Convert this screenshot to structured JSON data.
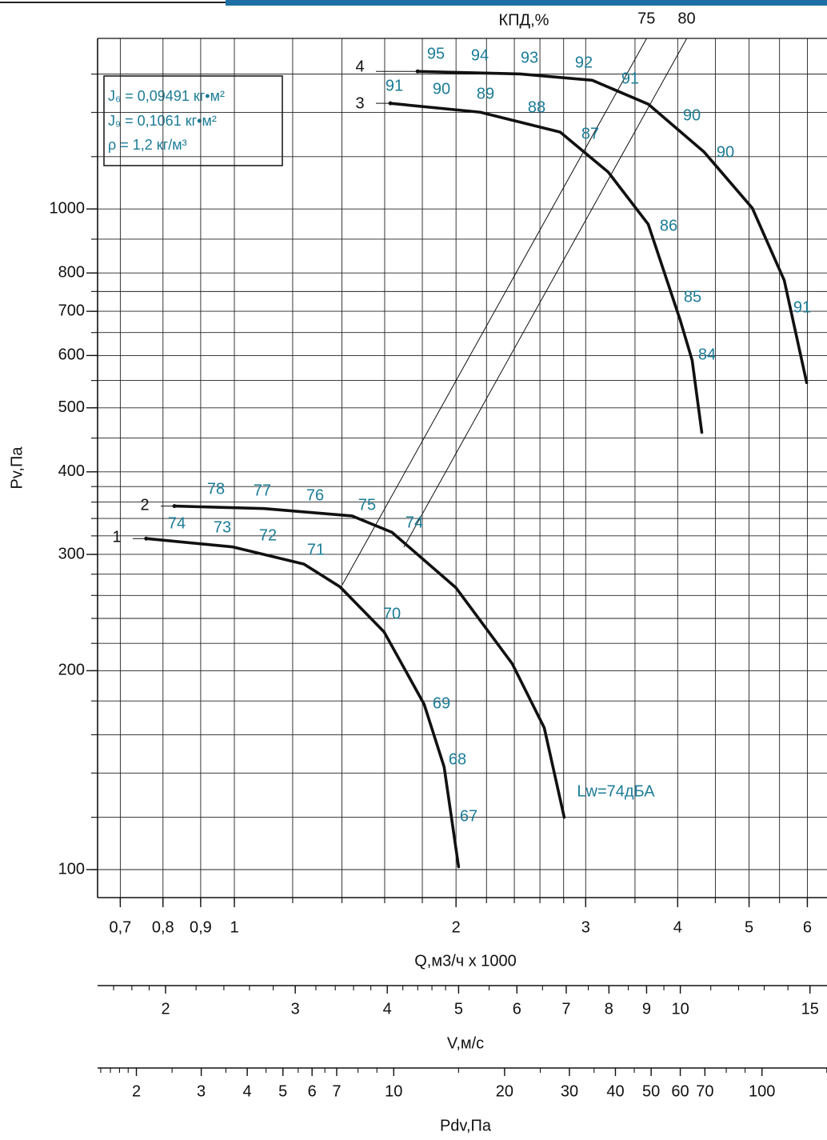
{
  "chart_data": {
    "type": "line",
    "xlog": true,
    "ylog": true,
    "grid": true,
    "efficiency_title": "КПД,%",
    "xlabel": "Q,м3/ч x 1000",
    "ylabel": "Pv,Па",
    "xlim": [
      0.652,
      6.38
    ],
    "ylim": [
      90.7,
      1812
    ],
    "xticks": [
      {
        "value": 0.7,
        "label": "0,7"
      },
      {
        "value": 0.8,
        "label": "0,8"
      },
      {
        "value": 0.9,
        "label": "0,9"
      },
      1,
      2,
      3,
      4,
      5,
      6
    ],
    "xgrid": [
      0.7,
      0.8,
      0.9,
      1,
      1.2,
      1.4,
      1.6,
      1.8,
      2,
      2.2,
      2.4,
      2.6,
      2.8,
      3,
      3.5,
      4,
      4.5,
      5,
      5.5,
      6
    ],
    "yticks": [
      100,
      200,
      300,
      400,
      500,
      600,
      700,
      800,
      1000
    ],
    "ygrid": [
      100,
      120,
      140,
      160,
      180,
      200,
      220,
      240,
      260,
      280,
      300,
      320,
      340,
      360,
      380,
      400,
      450,
      500,
      550,
      600,
      650,
      700,
      750,
      800,
      900,
      1000,
      1200,
      1400,
      1600
    ],
    "series": [
      {
        "name": "1",
        "color": "#111111",
        "x": [
          0.759,
          0.993,
          1.243,
          1.391,
          1.597,
          1.81,
          1.927,
          2.016
        ],
        "values": [
          317,
          308,
          290,
          268,
          229,
          178,
          143,
          101
        ]
      },
      {
        "name": "2",
        "color": "#111111",
        "x": [
          0.829,
          1.097,
          1.445,
          1.637,
          2.0,
          2.384,
          2.635,
          2.805
        ],
        "values": [
          355,
          352,
          343,
          324,
          267,
          205,
          164,
          120
        ]
      },
      {
        "name": "3",
        "color": "#111111",
        "x": [
          1.629,
          2.157,
          2.77,
          3.219,
          3.648,
          4.031,
          4.185,
          4.313
        ],
        "values": [
          1445,
          1401,
          1307,
          1137,
          948,
          679,
          590,
          459
        ]
      },
      {
        "name": "4",
        "color": "#111111",
        "x": [
          1.774,
          2.443,
          3.062,
          3.648,
          4.346,
          5.051,
          5.581,
          5.987
        ],
        "values": [
          1615,
          1601,
          1566,
          1441,
          1219,
          1003,
          780,
          546
        ]
      }
    ],
    "efficiency_lines": [
      {
        "name": "75",
        "color": "#111111",
        "x": [
          1.402,
          3.628
        ],
        "values": [
          270,
          1810
        ]
      },
      {
        "name": "80",
        "color": "#111111",
        "x": [
          1.7,
          4.113
        ],
        "values": [
          308,
          1810
        ]
      }
    ],
    "annotations": [
      "95",
      "94",
      "93",
      "92",
      "91",
      "90",
      "90",
      "91",
      "91",
      "90",
      "89",
      "88",
      "87",
      "86",
      "85",
      "84",
      "78",
      "77",
      "76",
      "75",
      "74",
      "Lw=74дБА",
      "74",
      "73",
      "72",
      "71",
      "70",
      "69",
      "68",
      "67"
    ],
    "info": [
      "J₆ = 0,09491 кг•м²",
      "J₉ = 0,1061 кг•м²",
      "ρ = 1,2 кг/м³"
    ],
    "secondary_axes": [
      {
        "label": "V,м/с",
        "lim": [
          1.617,
          15.82
        ],
        "ticks": [
          2,
          3,
          4,
          5,
          6,
          7,
          8,
          9,
          10,
          15
        ],
        "minor": [
          1.7,
          1.8,
          1.9,
          2,
          2.2,
          2.4,
          2.6,
          2.8,
          3,
          3.2,
          3.4,
          3.6,
          3.8,
          4,
          4.2,
          4.4,
          4.6,
          4.8,
          5,
          5.5,
          6,
          6.5,
          7,
          7.5,
          8,
          8.5,
          9,
          9.5,
          10,
          11,
          12,
          13,
          14,
          15
        ]
      },
      {
        "label": "Pdv,Па",
        "lim": [
          1.569,
          150.2
        ],
        "ticks": [
          2,
          3,
          4,
          5,
          6,
          7,
          10,
          20,
          30,
          40,
          50,
          60,
          70,
          100
        ],
        "minor": [
          1.6,
          1.7,
          1.8,
          1.9,
          2,
          2.5,
          3,
          3.5,
          4,
          4.5,
          5,
          5.5,
          6,
          6.5,
          7,
          8,
          9,
          10,
          15,
          20,
          25,
          30,
          35,
          40,
          45,
          50,
          60,
          70,
          80,
          90,
          100,
          150
        ]
      }
    ]
  }
}
